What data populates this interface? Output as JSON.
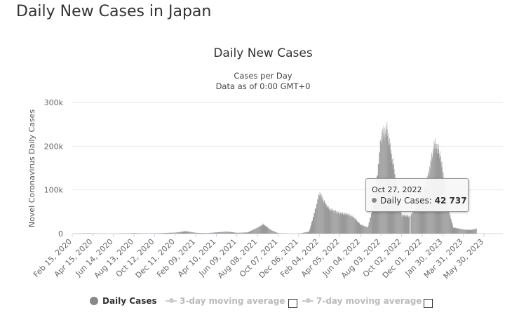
{
  "page": {
    "title": "Daily New Cases in Japan"
  },
  "chart_data": {
    "type": "bar",
    "title": "Daily New Cases",
    "subtitle": "Cases per Day",
    "subtitle2": "Data as of 0:00 GMT+0",
    "ylabel": "Novel Coronavirus Daily Cases",
    "xlabel": "",
    "ylim": [
      0,
      300000
    ],
    "y_ticks": [
      0,
      100000,
      200000,
      300000
    ],
    "y_tick_labels": [
      "0",
      "100k",
      "200k",
      "300k"
    ],
    "x_tick_labels": [
      "Feb 15, 2020",
      "Apr 15, 2020",
      "Jun 14, 2020",
      "Aug 13, 2020",
      "Oct 12, 2020",
      "Dec 11, 2020",
      "Feb 09, 2021",
      "Apr 10, 2021",
      "Jun 09, 2021",
      "Aug 08, 2021",
      "Oct 07, 2021",
      "Dec 06, 2021",
      "Feb 04, 2022",
      "Apr 05, 2022",
      "Jun 04, 2022",
      "Aug 03, 2022",
      "Oct 02, 2022",
      "Dec 01, 2022",
      "Jan 30, 2023",
      "Mar 31, 2023",
      "May 30, 2023"
    ],
    "x_date_range": [
      "Feb 15, 2020",
      "May 30, 2023"
    ],
    "grid": true,
    "color": "#999999",
    "series": [
      {
        "name": "Daily Cases",
        "x": [
          "Feb 15, 2020",
          "Mar 15, 2020",
          "Apr 15, 2020",
          "May 15, 2020",
          "Jun 14, 2020",
          "Jul 15, 2020",
          "Aug 13, 2020",
          "Sep 15, 2020",
          "Oct 12, 2020",
          "Nov 15, 2020",
          "Dec 11, 2020",
          "Jan 10, 2021",
          "Feb 09, 2021",
          "Mar 10, 2021",
          "Apr 10, 2021",
          "May 10, 2021",
          "Jun 09, 2021",
          "Jul 10, 2021",
          "Aug 08, 2021",
          "Aug 25, 2021",
          "Sep 15, 2021",
          "Oct 07, 2021",
          "Nov 06, 2021",
          "Dec 06, 2021",
          "Jan 05, 2022",
          "Jan 20, 2022",
          "Feb 04, 2022",
          "Feb 20, 2022",
          "Mar 05, 2022",
          "Apr 05, 2022",
          "Apr 25, 2022",
          "May 15, 2022",
          "Jun 04, 2022",
          "Jun 25, 2022",
          "Jul 15, 2022",
          "Aug 03, 2022",
          "Aug 20, 2022",
          "Sep 05, 2022",
          "Oct 02, 2022",
          "Oct 27, 2022",
          "Nov 15, 2022",
          "Dec 01, 2022",
          "Dec 20, 2022",
          "Jan 05, 2023",
          "Jan 20, 2023",
          "Jan 30, 2023",
          "Feb 15, 2023",
          "Mar 01, 2023",
          "Mar 31, 2023",
          "Apr 20, 2023",
          "May 08, 2023"
        ],
        "values": [
          0,
          800,
          500,
          200,
          100,
          600,
          1200,
          600,
          500,
          1800,
          2500,
          6000,
          2000,
          1200,
          3000,
          5000,
          2000,
          3000,
          15000,
          23000,
          9000,
          1000,
          200,
          100,
          5000,
          50000,
          100000,
          75000,
          60000,
          50000,
          48000,
          40000,
          22000,
          15000,
          80000,
          240000,
          255000,
          180000,
          45000,
          42737,
          70000,
          90000,
          150000,
          220000,
          200000,
          150000,
          60000,
          15000,
          10000,
          9000,
          12000
        ]
      }
    ],
    "tooltip": {
      "date": "Oct 27, 2022",
      "series": "Daily Cases",
      "value": "42 737"
    }
  },
  "legend": {
    "items": [
      {
        "label": "Daily Cases",
        "active": true
      },
      {
        "label": "3-day moving average",
        "active": false
      },
      {
        "label": "7-day moving average",
        "active": false
      }
    ]
  }
}
